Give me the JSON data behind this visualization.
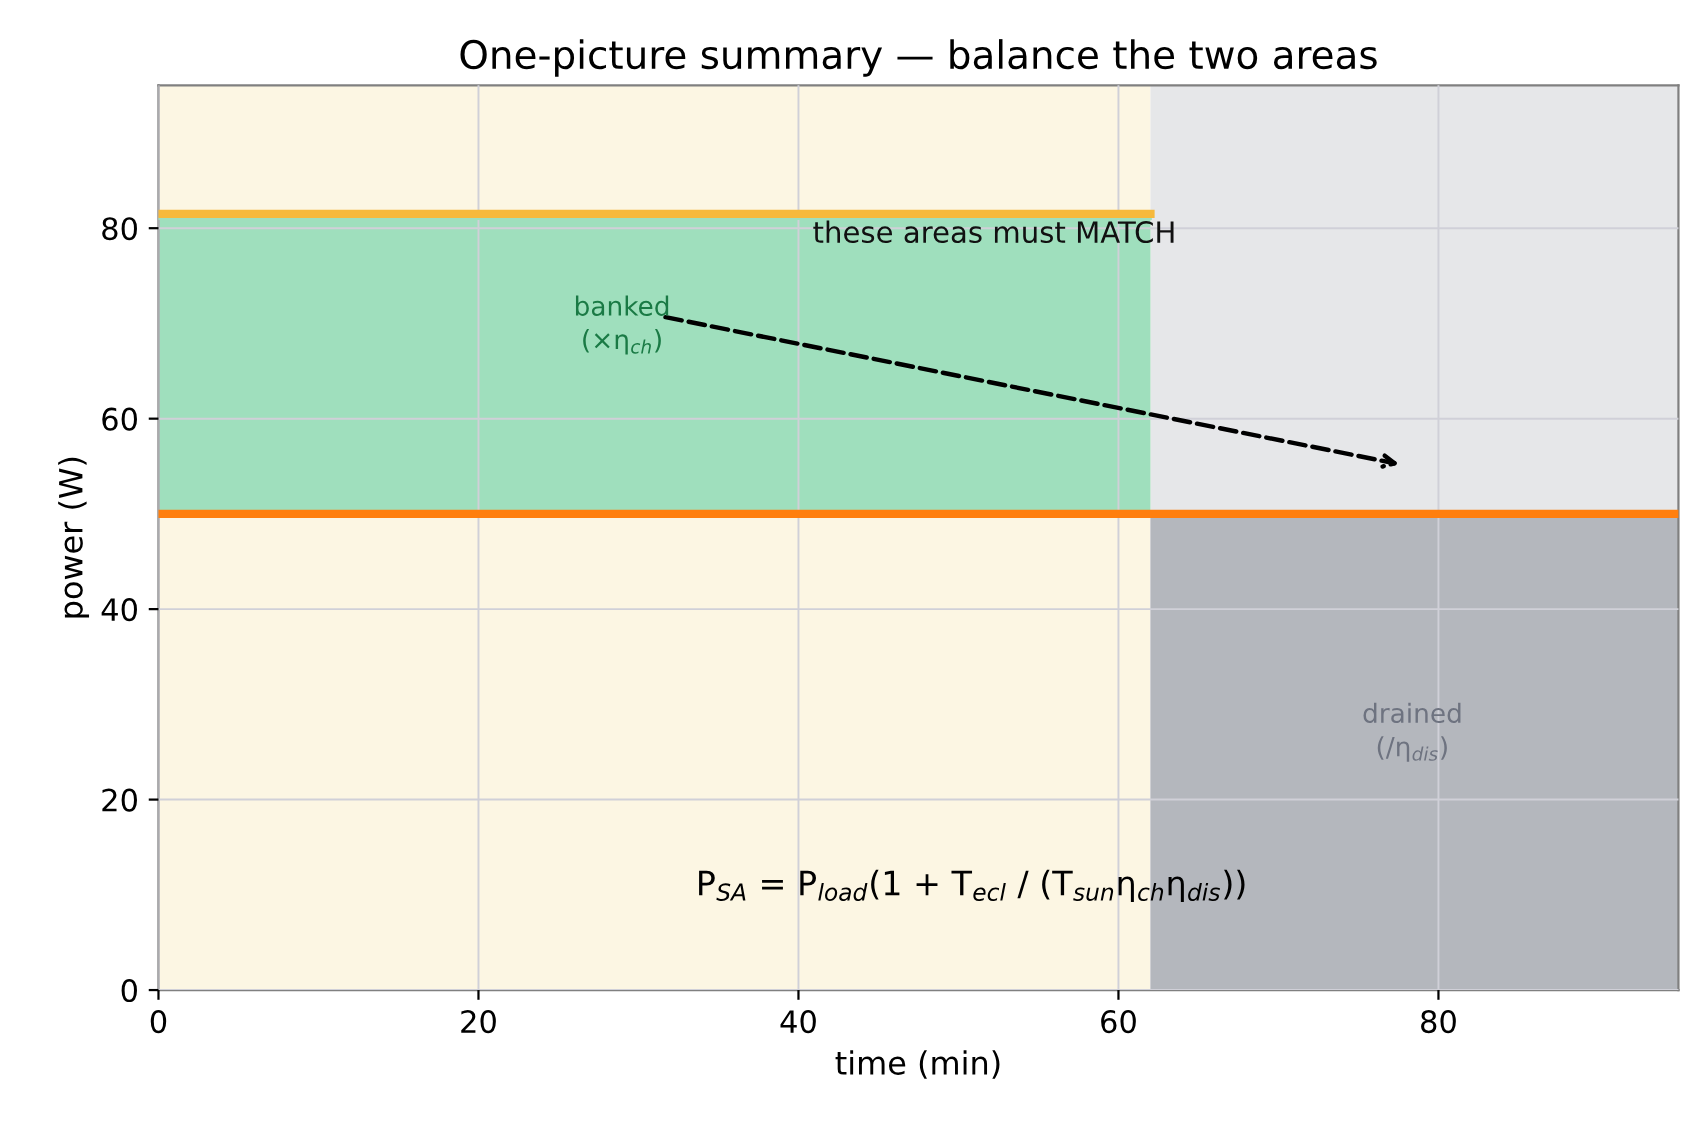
{
  "chart_data": {
    "type": "area",
    "title": "One-picture summary — balance the two areas",
    "xlabel": "time (min)",
    "ylabel": "power (W)",
    "xlim": [
      0,
      95
    ],
    "ylim": [
      0,
      95
    ],
    "xticks": [
      0,
      20,
      40,
      60,
      80
    ],
    "yticks": [
      0,
      20,
      40,
      60,
      80
    ],
    "grid": true,
    "bands": [
      {
        "axis": "x",
        "from": 0,
        "to": 62,
        "color": "#fcf6e3"
      },
      {
        "axis": "x",
        "from": 62,
        "to": 95,
        "color": "#e6e7e9"
      }
    ],
    "series": [
      {
        "type": "line",
        "color": "#9fdfbd",
        "x": [
          0,
          62
        ],
        "values": [
          81,
          81
        ],
        "lower": [
          50,
          50
        ],
        "upper": [
          81,
          81
        ]
      },
      {
        "color": "#b4b7bd",
        "x": [
          62,
          95
        ],
        "values": [
          50,
          50
        ]
      },
      {
        "type": "line",
        "color": "#f6b93b",
        "x": [
          0,
          62
        ],
        "values": [
          81.5,
          81.5
        ]
      },
      {
        "type": "line",
        "color": "#ff7f0e",
        "x": [
          0,
          95
        ],
        "values": [
          50,
          50
        ]
      }
    ],
    "annotations": [
      "these areas must MATCH",
      "banked\n(×η$_{ch}$)",
      "drained\n(/η$_{dis}$)",
      "P$_{SA}$ = P$_{load}$(1 + T$_{ecl}$ / (T$_{sun}$η$_{ch}$η$_{dis}$))"
    ]
  }
}
